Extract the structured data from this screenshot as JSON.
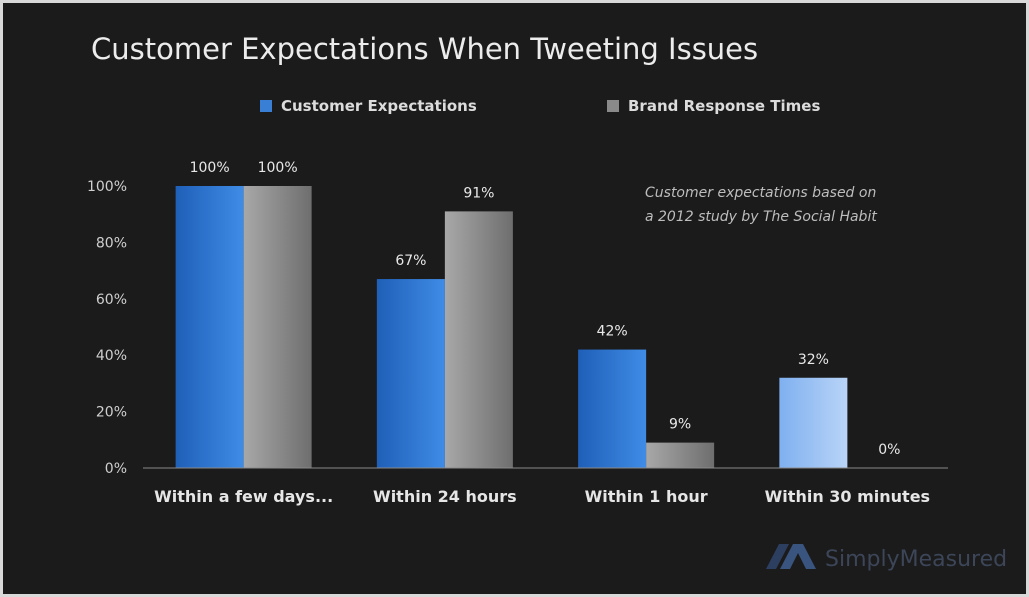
{
  "chart_data": {
    "type": "bar",
    "title": "Customer Expectations When Tweeting Issues",
    "categories": [
      "Within a few days...",
      "Within 24 hours",
      "Within 1 hour",
      "Within 30 minutes"
    ],
    "series": [
      {
        "name": "Customer Expectations",
        "values": [
          100,
          67,
          42,
          32
        ],
        "color": "#3a7fd6"
      },
      {
        "name": "Brand Response Times",
        "values": [
          100,
          91,
          9,
          0
        ],
        "color": "#8a8a8a"
      }
    ],
    "data_labels": [
      [
        "100%",
        "67%",
        "42%",
        "32%"
      ],
      [
        "100%",
        "91%",
        "9%",
        "0%"
      ]
    ],
    "yticks": [
      "0%",
      "20%",
      "40%",
      "60%",
      "80%",
      "100%"
    ],
    "ylim": [
      0,
      100
    ],
    "legend_position": "top",
    "grid": false,
    "annotation": [
      "Customer expectations based on",
      "a 2012 study by The Social Habit"
    ]
  },
  "branding": {
    "text": "SimplyMeasured"
  },
  "colors": {
    "background": "#1b1b1b",
    "border": "#d9d9d9"
  }
}
